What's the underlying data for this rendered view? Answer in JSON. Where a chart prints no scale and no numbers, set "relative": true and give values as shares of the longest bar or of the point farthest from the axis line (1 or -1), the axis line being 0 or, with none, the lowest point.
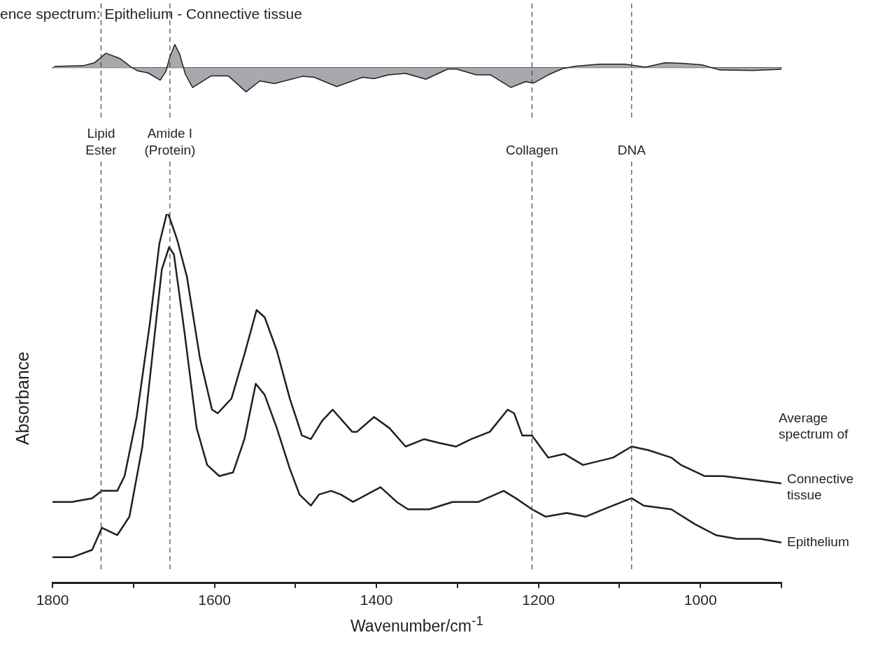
{
  "chart_data": [
    {
      "type": "area",
      "title": "ence spectrum: Epithelium - Connective tissue",
      "relative": true,
      "xlim": [
        1800,
        900
      ],
      "legend": false,
      "series": [
        {
          "color": "#a7a9ae",
          "x": [
            1798,
            1762,
            1748,
            1734,
            1717,
            1702,
            1695,
            1682,
            1667,
            1660,
            1655,
            1649,
            1643,
            1636,
            1627,
            1604,
            1583,
            1561,
            1544,
            1526,
            1491,
            1477,
            1449,
            1417,
            1403,
            1385,
            1364,
            1339,
            1312,
            1301,
            1277,
            1259,
            1234,
            1216,
            1206,
            1188,
            1170,
            1153,
            1125,
            1093,
            1068,
            1044,
            1023,
            998,
            976,
            935,
            900
          ],
          "values": [
            0.05,
            0.08,
            0.2,
            0.59,
            0.38,
            0,
            -0.13,
            -0.22,
            -0.52,
            -0.16,
            0.45,
            0.95,
            0.56,
            -0.27,
            -0.82,
            -0.34,
            -0.34,
            -1,
            -0.55,
            -0.66,
            -0.36,
            -0.4,
            -0.78,
            -0.4,
            -0.46,
            -0.3,
            -0.24,
            -0.48,
            -0.06,
            -0.06,
            -0.3,
            -0.3,
            -0.82,
            -0.58,
            -0.64,
            -0.3,
            -0.04,
            0.06,
            0.14,
            0.14,
            0.02,
            0.2,
            0.18,
            0.11,
            -0.1,
            -0.12,
            -0.07
          ]
        }
      ],
      "ref_lines": [
        {
          "axis": "x",
          "value": 1740,
          "line_style": "dashed"
        },
        {
          "axis": "x",
          "value": 1655,
          "line_style": "dashed"
        },
        {
          "axis": "x",
          "value": 1208,
          "line_style": "dashed"
        },
        {
          "axis": "x",
          "value": 1085,
          "line_style": "dashed"
        }
      ]
    },
    {
      "type": "line",
      "xlabel": "Wavenumber/cm$^{-1}$",
      "ylabel": "Absorbance",
      "relative": true,
      "xlim": [
        1800,
        900
      ],
      "legend": false,
      "marker": "none",
      "line_style": "solid",
      "xticks": [
        1800,
        {
          "value": 1700,
          "label": null
        },
        1600,
        {
          "value": 1500,
          "label": null
        },
        1400,
        {
          "value": 1300,
          "label": null
        },
        1200,
        {
          "value": 1100,
          "label": null
        },
        1000,
        {
          "value": 900,
          "label": null
        }
      ],
      "series": [
        {
          "name": "Connective tissue",
          "color": "#231f20",
          "x": [
            1800,
            1776,
            1751,
            1739,
            1720,
            1711,
            1696,
            1680,
            1668,
            1659,
            1657,
            1646,
            1634,
            1618,
            1603,
            1596,
            1579,
            1563,
            1548,
            1538,
            1523,
            1507,
            1492,
            1481,
            1467,
            1454,
            1430,
            1424,
            1403,
            1384,
            1364,
            1341,
            1323,
            1302,
            1283,
            1260,
            1238,
            1230,
            1220,
            1208,
            1188,
            1168,
            1145,
            1108,
            1085,
            1064,
            1036,
            1024,
            995,
            972,
            935,
            900
          ],
          "values": [
            0.22,
            0.22,
            0.23,
            0.25,
            0.25,
            0.29,
            0.45,
            0.7,
            0.92,
            1,
            1,
            0.93,
            0.83,
            0.61,
            0.47,
            0.46,
            0.5,
            0.62,
            0.74,
            0.72,
            0.63,
            0.5,
            0.4,
            0.39,
            0.44,
            0.47,
            0.41,
            0.41,
            0.45,
            0.42,
            0.37,
            0.39,
            0.38,
            0.37,
            0.39,
            0.41,
            0.47,
            0.46,
            0.4,
            0.4,
            0.34,
            0.35,
            0.32,
            0.34,
            0.37,
            0.36,
            0.34,
            0.32,
            0.29,
            0.29,
            0.28,
            0.27
          ]
        },
        {
          "name": "Epithelium",
          "color": "#231f20",
          "x": [
            1800,
            1776,
            1751,
            1739,
            1720,
            1705,
            1689,
            1677,
            1665,
            1656,
            1650,
            1637,
            1622,
            1609,
            1594,
            1577,
            1563,
            1549,
            1538,
            1523,
            1507,
            1495,
            1481,
            1471,
            1456,
            1444,
            1429,
            1395,
            1375,
            1361,
            1335,
            1306,
            1274,
            1243,
            1228,
            1208,
            1191,
            1165,
            1142,
            1108,
            1085,
            1070,
            1036,
            1007,
            981,
            955,
            926,
            900
          ],
          "values": [
            0.07,
            0.07,
            0.09,
            0.15,
            0.13,
            0.18,
            0.37,
            0.61,
            0.85,
            0.91,
            0.89,
            0.68,
            0.42,
            0.32,
            0.29,
            0.3,
            0.39,
            0.54,
            0.51,
            0.42,
            0.31,
            0.24,
            0.21,
            0.24,
            0.25,
            0.24,
            0.22,
            0.26,
            0.22,
            0.2,
            0.2,
            0.22,
            0.22,
            0.25,
            0.23,
            0.2,
            0.18,
            0.19,
            0.18,
            0.21,
            0.23,
            0.21,
            0.2,
            0.16,
            0.13,
            0.12,
            0.12,
            0.11
          ]
        }
      ],
      "ref_lines": [
        {
          "axis": "x",
          "value": 1740,
          "label": "Lipid\nEster",
          "line_style": "dashed"
        },
        {
          "axis": "x",
          "value": 1655,
          "label": "Amide I\n(Protein)",
          "line_style": "dashed"
        },
        {
          "axis": "x",
          "value": 1208,
          "label": "Collagen",
          "line_style": "dashed"
        },
        {
          "axis": "x",
          "value": 1085,
          "label": "DNA",
          "line_style": "dashed"
        }
      ],
      "annotations": [
        "Average spectrum of"
      ]
    }
  ]
}
